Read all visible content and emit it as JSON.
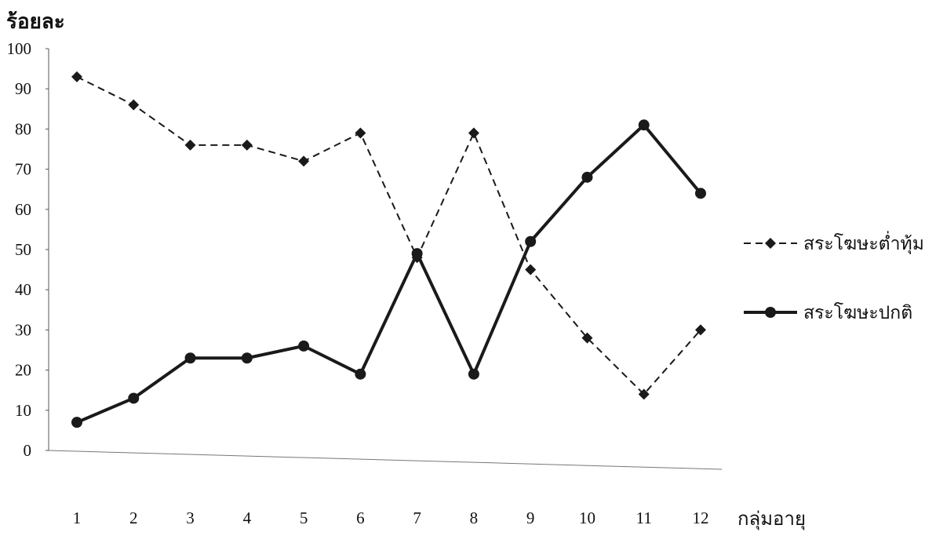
{
  "chart_data": {
    "type": "line",
    "title": "",
    "xlabel": "กลุ่มอายุ",
    "ylabel": "ร้อยละ",
    "ylim": [
      0,
      100
    ],
    "yticks": [
      0,
      10,
      20,
      30,
      40,
      50,
      60,
      70,
      80,
      90,
      100
    ],
    "categories": [
      "1",
      "2",
      "3",
      "4",
      "5",
      "6",
      "7",
      "8",
      "9",
      "10",
      "11",
      "12"
    ],
    "grid": false,
    "legend_position": "right",
    "series": [
      {
        "name": "สระโฆษะต่ำทุ้ม",
        "style": "dashed",
        "marker": "diamond",
        "color": "#1a1a1a",
        "values": [
          93,
          86,
          76,
          76,
          72,
          79,
          48,
          79,
          45,
          28,
          14,
          30
        ]
      },
      {
        "name": "สระโฆษะปกติ",
        "style": "solid",
        "marker": "circle",
        "color": "#1a1a1a",
        "values": [
          7,
          13,
          23,
          23,
          26,
          19,
          49,
          19,
          52,
          68,
          81,
          64
        ]
      }
    ]
  }
}
